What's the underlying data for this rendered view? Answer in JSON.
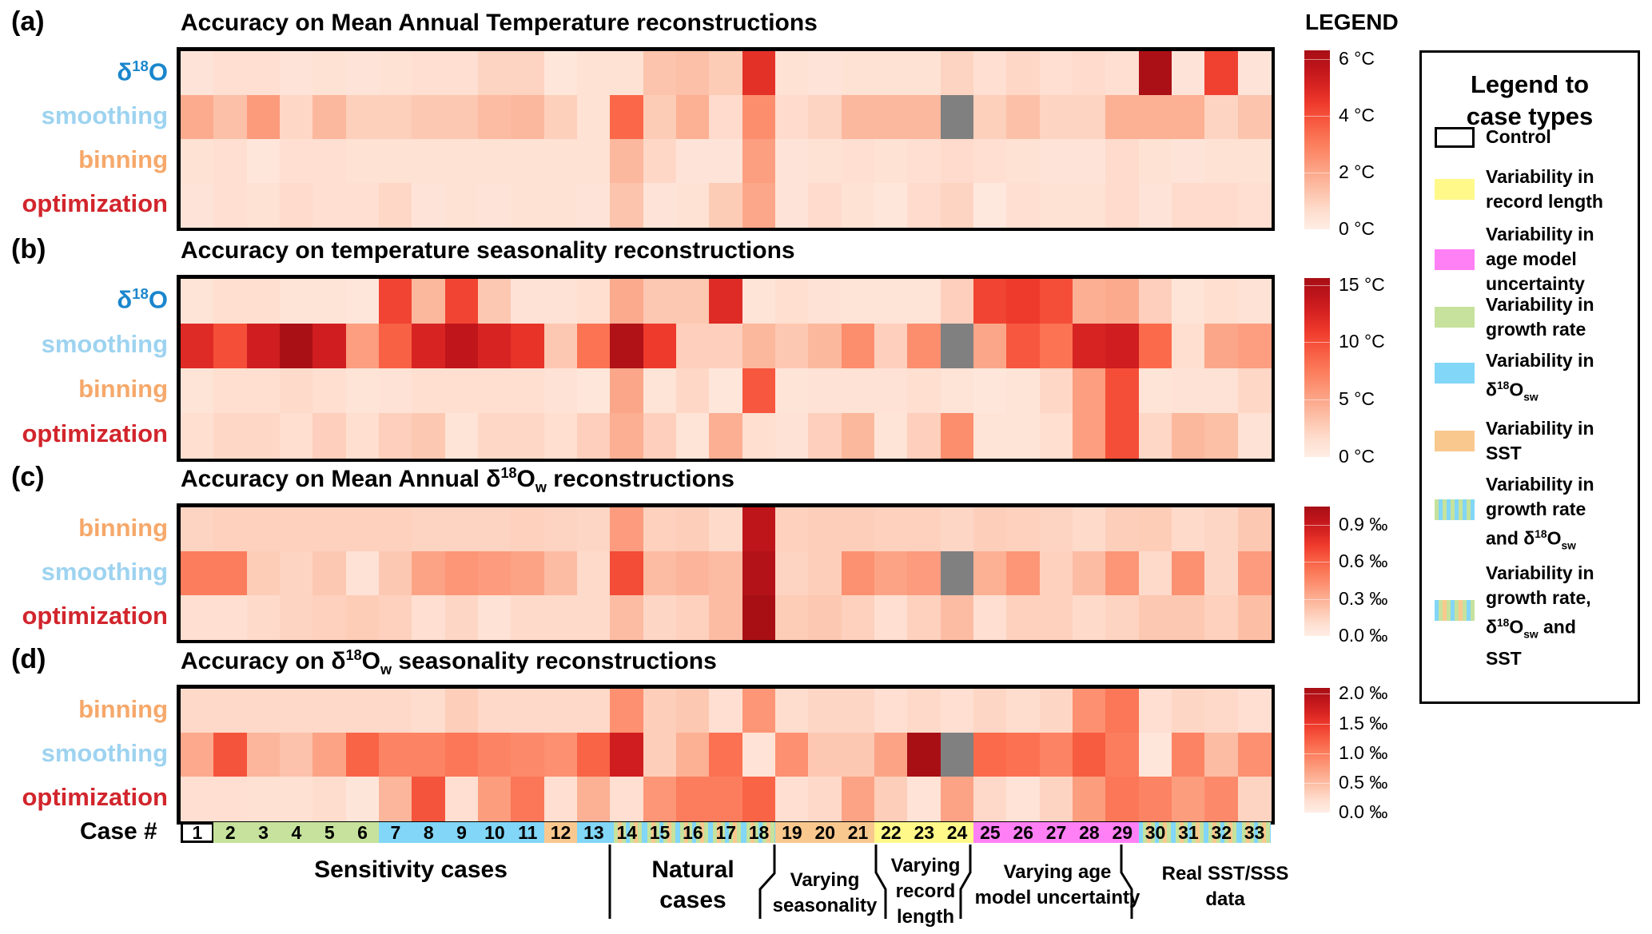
{
  "legend_header": "LEGEND",
  "case_axis_label": "Case #",
  "row_label_colors": {
    "d18O": "#1a86cc",
    "smoothing": "#9dd3f0",
    "binning": "#f6a86a",
    "optimization": "#d2252c"
  },
  "case_type_colors": {
    "control": "#ffffff",
    "record_length": "#fff98a",
    "age_model": "#ff80f5",
    "growth_rate": "#c6e29c",
    "d18Osw": "#82d6f7",
    "sst": "#f9c88e"
  },
  "case_types": [
    "control",
    "growth_rate",
    "growth_rate",
    "growth_rate",
    "growth_rate",
    "growth_rate",
    "d18Osw",
    "d18Osw",
    "d18Osw",
    "d18Osw",
    "d18Osw",
    "sst",
    "d18Osw",
    "growth_d18Osw_sst",
    "growth_d18Osw_sst",
    "growth_d18Osw_sst",
    "growth_d18Osw_sst",
    "growth_d18Osw_sst",
    "sst",
    "sst",
    "sst",
    "record_length",
    "record_length",
    "record_length",
    "age_model",
    "age_model",
    "age_model",
    "age_model",
    "age_model",
    "growth_d18Osw_sst",
    "growth_d18Osw_sst",
    "growth_d18Osw_sst",
    "growth_d18Osw_sst"
  ],
  "case_legend": {
    "title_line1": "Legend to",
    "title_line2": "case types",
    "items": [
      {
        "key": "control",
        "lines": [
          "Control"
        ]
      },
      {
        "key": "record_length",
        "lines": [
          "Variability in",
          "record length"
        ]
      },
      {
        "key": "age_model",
        "lines": [
          "Variability in",
          "age model",
          "uncertainty"
        ]
      },
      {
        "key": "growth_rate",
        "lines": [
          "Variability in",
          "growth rate"
        ]
      },
      {
        "key": "d18Osw",
        "lines": [
          "Variability in",
          "δ18Osw"
        ]
      },
      {
        "key": "sst",
        "lines": [
          "Variability in",
          "SST"
        ]
      },
      {
        "key": "growth_d18Osw",
        "lines": [
          "Variability in",
          "growth rate",
          "and δ18Osw"
        ]
      },
      {
        "key": "growth_d18Osw_sst",
        "lines": [
          "Variability in",
          "growth rate,",
          "δ18Osw and",
          "SST"
        ]
      }
    ]
  },
  "groups": [
    {
      "label_lines": [
        "Sensitivity cases"
      ],
      "cases": "1-13"
    },
    {
      "label_lines": [
        "Natural",
        "cases"
      ],
      "cases": "14-18"
    },
    {
      "label_lines": [
        "Varying",
        "seasonality"
      ],
      "cases": "19-21"
    },
    {
      "label_lines": [
        "Varying",
        "record",
        "length"
      ],
      "cases": "22-24"
    },
    {
      "label_lines": [
        "Varying age",
        "model uncertainty"
      ],
      "cases": "25-29"
    },
    {
      "label_lines": [
        "Real SST/SSS",
        "data"
      ],
      "cases": "30-33"
    }
  ],
  "chart_data": [
    {
      "type": "heatmap",
      "panel": "(a)",
      "title": "Accuracy on Mean Annual Temperature reconstructions",
      "x": [
        1,
        2,
        3,
        4,
        5,
        6,
        7,
        8,
        9,
        10,
        11,
        12,
        13,
        14,
        15,
        16,
        17,
        18,
        19,
        20,
        21,
        22,
        23,
        24,
        25,
        26,
        27,
        28,
        29,
        30,
        31,
        32,
        33
      ],
      "xlabel": "Case #",
      "colorbar": {
        "min": 0,
        "max": 6.3,
        "ticks": [
          0,
          2,
          4,
          6
        ],
        "tick_labels": [
          "0 °C",
          "2 °C",
          "4 °C",
          "6 °C"
        ]
      },
      "rows": [
        {
          "name": "δ18O",
          "key": "d18O",
          "values": [
            0.4,
            0.6,
            0.6,
            0.4,
            0.5,
            0.4,
            0.5,
            0.6,
            0.6,
            0.9,
            0.9,
            0.3,
            0.5,
            0.5,
            1.3,
            1.4,
            1.1,
            4.7,
            0.5,
            0.4,
            0.5,
            0.5,
            0.5,
            0.9,
            0.6,
            0.8,
            0.6,
            0.7,
            0.6,
            6.2,
            0.4,
            4.3,
            0.4
          ]
        },
        {
          "name": "smoothing",
          "key": "smoothing",
          "values": [
            1.9,
            1.4,
            2.3,
            0.8,
            1.6,
            1.0,
            1.0,
            1.2,
            1.2,
            1.5,
            1.6,
            1.0,
            0.5,
            3.5,
            1.1,
            1.8,
            0.7,
            2.6,
            0.7,
            0.9,
            1.6,
            1.6,
            1.6,
            null,
            1.0,
            1.4,
            0.9,
            0.9,
            1.8,
            1.8,
            1.8,
            0.9,
            1.3
          ]
        },
        {
          "name": "binning",
          "key": "binning",
          "values": [
            0.5,
            0.6,
            0.3,
            0.6,
            0.6,
            0.5,
            0.5,
            0.5,
            0.5,
            0.5,
            0.5,
            0.5,
            0.5,
            1.6,
            0.8,
            0.4,
            0.4,
            2.2,
            0.4,
            0.5,
            0.6,
            0.5,
            0.6,
            0.7,
            0.6,
            0.5,
            0.4,
            0.4,
            0.7,
            0.5,
            0.4,
            0.5,
            0.5
          ]
        },
        {
          "name": "optimization",
          "key": "optimization",
          "values": [
            0.4,
            0.6,
            0.5,
            0.7,
            0.6,
            0.6,
            0.8,
            0.4,
            0.5,
            0.4,
            0.5,
            0.5,
            0.4,
            1.3,
            0.4,
            0.5,
            1.1,
            2.0,
            0.4,
            0.7,
            0.5,
            0.3,
            0.7,
            0.9,
            0.2,
            0.6,
            0.5,
            0.5,
            0.7,
            0.4,
            0.7,
            0.7,
            0.6
          ]
        }
      ]
    },
    {
      "type": "heatmap",
      "panel": "(b)",
      "title": "Accuracy on temperature seasonality reconstructions",
      "x": [
        1,
        2,
        3,
        4,
        5,
        6,
        7,
        8,
        9,
        10,
        11,
        12,
        13,
        14,
        15,
        16,
        17,
        18,
        19,
        20,
        21,
        22,
        23,
        24,
        25,
        26,
        27,
        28,
        29,
        30,
        31,
        32,
        33
      ],
      "xlabel": "Case #",
      "colorbar": {
        "min": 0,
        "max": 15.6,
        "ticks": [
          0,
          5,
          10,
          15
        ],
        "tick_labels": [
          "0 °C",
          "5 °C",
          "10 °C",
          "15 °C"
        ]
      },
      "rows": [
        {
          "name": "δ18O",
          "key": "d18O",
          "values": [
            1,
            1.5,
            1.5,
            1,
            1,
            0.8,
            10.5,
            4,
            10.5,
            3,
            1.2,
            1.2,
            1.5,
            4.8,
            3,
            3,
            12,
            1,
            1.5,
            1.2,
            1,
            1,
            1,
            2.5,
            10.5,
            11,
            10,
            4.5,
            4.8,
            2.5,
            1,
            1.5,
            1.2
          ]
        },
        {
          "name": "smoothing",
          "key": "smoothing",
          "values": [
            12,
            10,
            13,
            15.5,
            13,
            5.5,
            9,
            12.5,
            14,
            12.5,
            11.5,
            3,
            8,
            15,
            11,
            2.5,
            2.5,
            4,
            3,
            4,
            6.5,
            2.5,
            6.5,
            null,
            5,
            9.5,
            8,
            12.5,
            13,
            8.5,
            1.5,
            5,
            5.5
          ]
        },
        {
          "name": "binning",
          "key": "binning",
          "values": [
            1,
            1.5,
            1.5,
            1.8,
            1.5,
            1,
            1.2,
            1.5,
            1.5,
            1.5,
            1.5,
            1.2,
            0.8,
            5,
            1,
            2,
            0.8,
            9.5,
            1,
            1.2,
            1.2,
            1.2,
            1.5,
            1,
            0.8,
            1,
            2,
            5.5,
            10,
            1,
            1.2,
            1.2,
            2
          ]
        },
        {
          "name": "optimization",
          "key": "optimization",
          "values": [
            1.5,
            2,
            2,
            1.5,
            2.5,
            1.5,
            2.5,
            3,
            1,
            2,
            2,
            1.5,
            2.5,
            4.5,
            2.5,
            1,
            4.5,
            1.5,
            1.2,
            2.5,
            4,
            1,
            2.5,
            6.5,
            1,
            1,
            1.5,
            5.5,
            10,
            2,
            4,
            3.5,
            1.2
          ]
        }
      ]
    },
    {
      "type": "heatmap",
      "panel": "(c)",
      "title_parts": [
        "Accuracy on Mean Annual δ",
        "18",
        "O",
        "w",
        " reconstructions"
      ],
      "title": "Accuracy on Mean Annual δ18Ow reconstructions",
      "x": [
        1,
        2,
        3,
        4,
        5,
        6,
        7,
        8,
        9,
        10,
        11,
        12,
        13,
        14,
        15,
        16,
        17,
        18,
        19,
        20,
        21,
        22,
        23,
        24,
        25,
        26,
        27,
        28,
        29,
        30,
        31,
        32,
        33
      ],
      "xlabel": "Case #",
      "colorbar": {
        "min": 0,
        "max": 1.05,
        "ticks": [
          0,
          0.3,
          0.6,
          0.9
        ],
        "tick_labels": [
          "0.0 ‰",
          "0.3 ‰",
          "0.6 ‰",
          "0.9 ‰"
        ]
      },
      "rows": [
        {
          "name": "binning",
          "key": "binning",
          "values": [
            0.15,
            0.16,
            0.16,
            0.16,
            0.16,
            0.16,
            0.16,
            0.15,
            0.15,
            0.15,
            0.16,
            0.15,
            0.14,
            0.38,
            0.16,
            0.17,
            0.12,
            0.95,
            0.16,
            0.17,
            0.17,
            0.16,
            0.16,
            0.14,
            0.17,
            0.16,
            0.15,
            0.12,
            0.17,
            0.18,
            0.12,
            0.14,
            0.2
          ]
        },
        {
          "name": "smoothing",
          "key": "smoothing",
          "values": [
            0.5,
            0.5,
            0.18,
            0.15,
            0.2,
            0.08,
            0.2,
            0.35,
            0.4,
            0.38,
            0.35,
            0.25,
            0.12,
            0.68,
            0.25,
            0.28,
            0.25,
            1.0,
            0.15,
            0.17,
            0.42,
            0.35,
            0.38,
            null,
            0.3,
            0.4,
            0.16,
            0.25,
            0.4,
            0.12,
            0.42,
            0.14,
            0.38
          ]
        },
        {
          "name": "optimization",
          "key": "optimization",
          "values": [
            0.1,
            0.1,
            0.12,
            0.15,
            0.16,
            0.18,
            0.16,
            0.1,
            0.14,
            0.08,
            0.12,
            0.12,
            0.12,
            0.25,
            0.14,
            0.16,
            0.25,
            1.05,
            0.18,
            0.2,
            0.16,
            0.1,
            0.16,
            0.25,
            0.1,
            0.16,
            0.16,
            0.12,
            0.15,
            0.2,
            0.2,
            0.16,
            0.24
          ]
        }
      ]
    },
    {
      "type": "heatmap",
      "panel": "(d)",
      "title_parts": [
        "Accuracy on δ",
        "18",
        "O",
        "w",
        " seasonality reconstructions"
      ],
      "title": "Accuracy on δ18Ow seasonality reconstructions",
      "x": [
        1,
        2,
        3,
        4,
        5,
        6,
        7,
        8,
        9,
        10,
        11,
        12,
        13,
        14,
        15,
        16,
        17,
        18,
        19,
        20,
        21,
        22,
        23,
        24,
        25,
        26,
        27,
        28,
        29,
        30,
        31,
        32,
        33
      ],
      "xlabel": "Case #",
      "colorbar": {
        "min": 0,
        "max": 2.1,
        "ticks": [
          0,
          0.5,
          1.0,
          1.5,
          2.0
        ],
        "tick_labels": [
          "0.0 ‰",
          "0.5 ‰",
          "1.0 ‰",
          "1.5 ‰",
          "2.0 ‰"
        ]
      },
      "rows": [
        {
          "name": "binning",
          "key": "binning",
          "values": [
            0.25,
            0.25,
            0.25,
            0.25,
            0.25,
            0.25,
            0.25,
            0.22,
            0.35,
            0.25,
            0.25,
            0.25,
            0.25,
            0.85,
            0.35,
            0.4,
            0.2,
            0.8,
            0.22,
            0.28,
            0.28,
            0.2,
            0.25,
            0.2,
            0.28,
            0.22,
            0.28,
            0.85,
            1.05,
            0.2,
            0.28,
            0.25,
            0.2
          ]
        },
        {
          "name": "smoothing",
          "key": "smoothing",
          "values": [
            0.65,
            1.3,
            0.55,
            0.45,
            0.7,
            1.2,
            0.95,
            0.95,
            1.05,
            0.95,
            0.9,
            0.85,
            1.2,
            1.75,
            0.35,
            0.6,
            1.1,
            0.15,
            0.85,
            0.4,
            0.4,
            0.7,
            2.1,
            null,
            1.15,
            1.1,
            0.95,
            1.25,
            1.0,
            0.1,
            0.95,
            0.5,
            0.85
          ]
        },
        {
          "name": "optimization",
          "key": "optimization",
          "values": [
            0.2,
            0.2,
            0.18,
            0.18,
            0.22,
            0.12,
            0.55,
            1.3,
            0.2,
            0.75,
            1.05,
            0.2,
            0.6,
            0.2,
            0.8,
            1.0,
            1.0,
            1.2,
            0.2,
            0.25,
            0.7,
            0.35,
            0.15,
            0.7,
            0.25,
            0.15,
            0.3,
            0.75,
            1.05,
            0.95,
            0.75,
            0.9,
            0.3
          ]
        }
      ]
    }
  ]
}
